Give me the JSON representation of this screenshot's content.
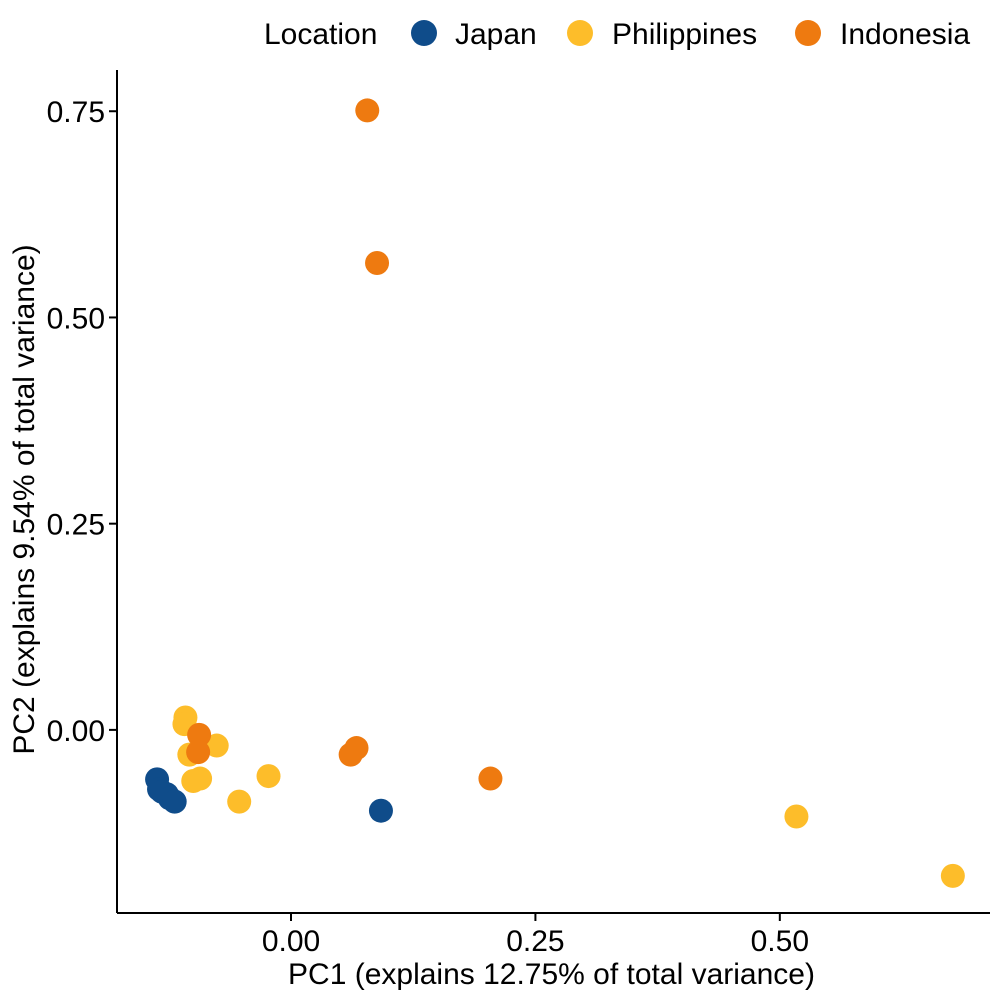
{
  "chart_data": {
    "type": "scatter",
    "xlabel": "PC1 (explains 12.75% of total variance)",
    "ylabel": "PC2 (explains 9.54% of total variance)",
    "xlim": [
      -0.178,
      0.715
    ],
    "ylim": [
      -0.222,
      0.8
    ],
    "x_ticks": [
      0.0,
      0.25,
      0.5
    ],
    "x_tick_labels": [
      "0.00",
      "0.25",
      "0.50"
    ],
    "y_ticks": [
      0.0,
      0.25,
      0.5,
      0.75
    ],
    "y_tick_labels": [
      "0.00",
      "0.25",
      "0.50",
      "0.75"
    ],
    "grid": false,
    "legend": {
      "title": "Location",
      "position": "top"
    },
    "series": [
      {
        "name": "Japan",
        "color": "#0f4c8a",
        "points": [
          {
            "x": -0.137,
            "y": -0.06
          },
          {
            "x": -0.135,
            "y": -0.072
          },
          {
            "x": -0.132,
            "y": -0.075
          },
          {
            "x": -0.127,
            "y": -0.078
          },
          {
            "x": -0.124,
            "y": -0.083
          },
          {
            "x": -0.119,
            "y": -0.087
          },
          {
            "x": 0.092,
            "y": -0.098
          }
        ]
      },
      {
        "name": "Philippines",
        "color": "#fdbd2a",
        "points": [
          {
            "x": -0.108,
            "y": 0.015
          },
          {
            "x": -0.109,
            "y": 0.007
          },
          {
            "x": -0.104,
            "y": -0.03
          },
          {
            "x": -0.076,
            "y": -0.019
          },
          {
            "x": -0.093,
            "y": -0.059
          },
          {
            "x": -0.1,
            "y": -0.062
          },
          {
            "x": -0.023,
            "y": -0.056
          },
          {
            "x": -0.053,
            "y": -0.087
          },
          {
            "x": 0.517,
            "y": -0.105
          },
          {
            "x": 0.677,
            "y": -0.177
          }
        ]
      },
      {
        "name": "Indonesia",
        "color": "#ee7a10",
        "points": [
          {
            "x": 0.078,
            "y": 0.751
          },
          {
            "x": 0.088,
            "y": 0.566
          },
          {
            "x": -0.094,
            "y": -0.006
          },
          {
            "x": -0.095,
            "y": -0.027
          },
          {
            "x": 0.067,
            "y": -0.022
          },
          {
            "x": 0.061,
            "y": -0.03
          },
          {
            "x": 0.204,
            "y": -0.059
          }
        ]
      }
    ]
  }
}
